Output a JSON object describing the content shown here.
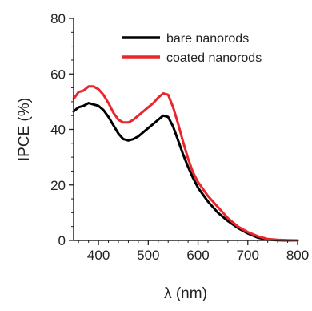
{
  "chart_data": {
    "type": "line",
    "xlabel": "λ (nm)",
    "ylabel": "IPCE (%)",
    "xlim": [
      350,
      800
    ],
    "ylim": [
      0,
      80
    ],
    "x_ticks": [
      400,
      500,
      600,
      700,
      800
    ],
    "y_ticks": [
      0,
      20,
      40,
      60,
      80
    ],
    "grid": false,
    "legend_position": "top-right",
    "series": [
      {
        "name": "bare nanorods",
        "color": "#000000",
        "x": [
          350,
          360,
          370,
          380,
          390,
          400,
          410,
          420,
          430,
          440,
          450,
          460,
          470,
          480,
          490,
          500,
          510,
          520,
          530,
          540,
          550,
          560,
          570,
          580,
          590,
          600,
          620,
          640,
          660,
          680,
          700,
          720,
          740,
          760,
          780,
          800
        ],
        "y": [
          46.5,
          48,
          48.5,
          49.5,
          49,
          48.5,
          47,
          44.5,
          41.5,
          38.5,
          36.5,
          36,
          36.5,
          37.5,
          39,
          40.5,
          42,
          43.5,
          45,
          44.5,
          41,
          36,
          31,
          26.5,
          22.5,
          19,
          14,
          10,
          7,
          4.5,
          2.5,
          1,
          0.3,
          0.1,
          0,
          0
        ]
      },
      {
        "name": "coated nanorods",
        "color": "#e8262b",
        "x": [
          350,
          360,
          370,
          380,
          390,
          400,
          410,
          420,
          430,
          440,
          450,
          460,
          470,
          480,
          490,
          500,
          510,
          520,
          530,
          540,
          550,
          560,
          570,
          580,
          590,
          600,
          620,
          640,
          660,
          680,
          700,
          720,
          740,
          760,
          780,
          800
        ],
        "y": [
          51,
          53.5,
          54,
          55.5,
          55.5,
          54.5,
          52.5,
          49.5,
          46,
          43.5,
          42.5,
          42.5,
          43.5,
          45,
          46.5,
          48,
          49.5,
          51.5,
          53,
          52.5,
          48,
          42,
          35.5,
          29.5,
          24.5,
          21,
          16,
          12,
          8,
          5,
          3,
          1.5,
          0.5,
          0.2,
          0.1,
          0
        ]
      }
    ]
  }
}
